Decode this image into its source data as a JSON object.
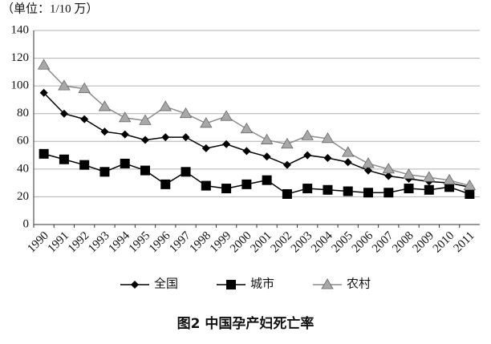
{
  "chart_data": {
    "type": "line",
    "title": "图2 中国孕产妇死亡率",
    "unit_label": "（单位：1/10 万）",
    "categories": [
      "1990",
      "1991",
      "1992",
      "1993",
      "1994",
      "1995",
      "1996",
      "1997",
      "1998",
      "1999",
      "2000",
      "2001",
      "2002",
      "2003",
      "2004",
      "2005",
      "2006",
      "2007",
      "2008",
      "2009",
      "2010",
      "2011"
    ],
    "series": [
      {
        "name": "全国",
        "color": "#000000",
        "marker": "diamond",
        "values": [
          95,
          80,
          76,
          67,
          65,
          61,
          63,
          63,
          55,
          58,
          53,
          49,
          43,
          50,
          48,
          45,
          39,
          35,
          33,
          31,
          30,
          27
        ]
      },
      {
        "name": "城市",
        "color": "#000000",
        "marker": "square",
        "values": [
          51,
          47,
          43,
          38,
          44,
          39,
          29,
          38,
          28,
          26,
          29,
          32,
          22,
          26,
          25,
          24,
          23,
          23,
          26,
          25,
          27,
          22
        ]
      },
      {
        "name": "农村",
        "color": "#8c8c8c",
        "marker": "triangle",
        "values": [
          115,
          100,
          98,
          85,
          77,
          75,
          85,
          80,
          73,
          78,
          69,
          61,
          58,
          64,
          62,
          52,
          44,
          40,
          36,
          34,
          32,
          28
        ]
      }
    ],
    "ylim": [
      0,
      140
    ],
    "yticks": [
      0,
      20,
      40,
      60,
      80,
      100,
      120,
      140
    ],
    "grid": true,
    "legend": "bottom"
  }
}
